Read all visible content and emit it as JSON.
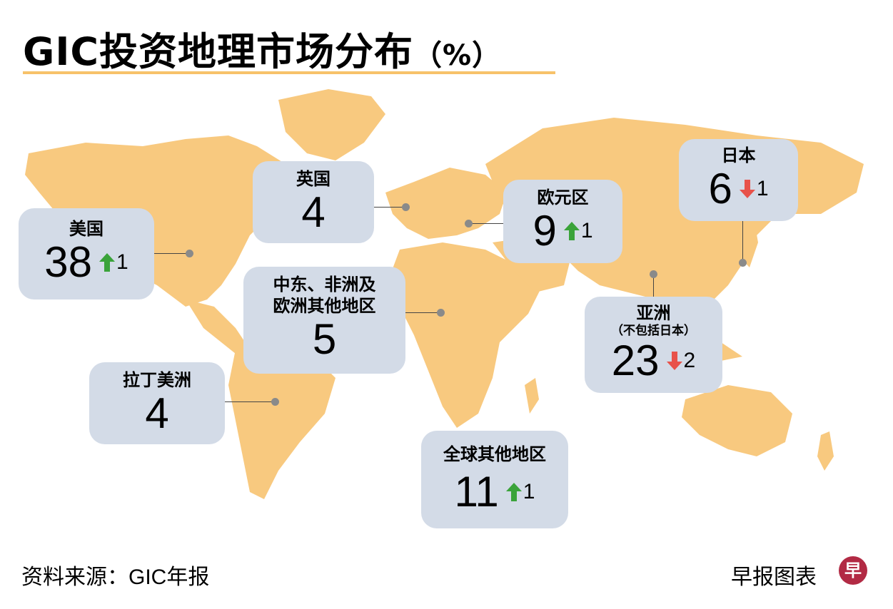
{
  "title": "GIC投资地理市场分布",
  "title_unit": "（%）",
  "colors": {
    "map": "#f8c97f",
    "box": "#d3dbe7",
    "up": "#3aa33a",
    "down": "#e8524a",
    "accent_line": "#f7c26a"
  },
  "regions": {
    "usa": {
      "name": "美国",
      "value": "38",
      "change": "1",
      "direction": "up"
    },
    "uk": {
      "name": "英国",
      "value": "4"
    },
    "eurozone": {
      "name": "欧元区",
      "value": "9",
      "change": "1",
      "direction": "up"
    },
    "japan": {
      "name": "日本",
      "value": "6",
      "change": "1",
      "direction": "down"
    },
    "mea": {
      "name_line1": "中东、非洲及",
      "name_line2": "欧洲其他地区",
      "value": "5"
    },
    "asia": {
      "name": "亚洲",
      "subname": "（不包括日本）",
      "value": "23",
      "change": "2",
      "direction": "down"
    },
    "latam": {
      "name": "拉丁美洲",
      "value": "4"
    },
    "rest": {
      "name": "全球其他地区",
      "value": "11",
      "change": "1",
      "direction": "up"
    }
  },
  "source": "资料来源：GIC年报",
  "credit": "早报图表",
  "logo": "早"
}
